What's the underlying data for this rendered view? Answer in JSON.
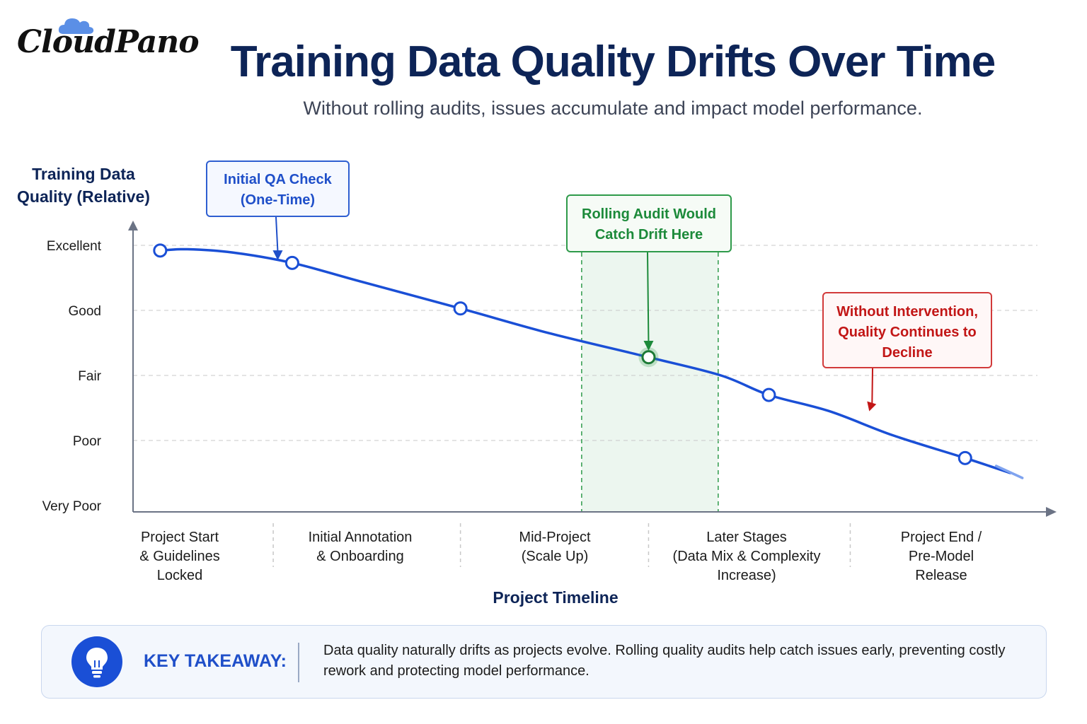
{
  "brand": {
    "logo_text": "CloudPano",
    "cloud_color": "#5b8fe6"
  },
  "header": {
    "title": "Training Data Quality Drifts Over Time",
    "subtitle": "Without rolling audits, issues accumulate and impact model performance."
  },
  "chart_data": {
    "type": "line",
    "ylabel_lines": [
      "Training Data",
      "Quality (Relative)"
    ],
    "xlabel": "Project Timeline",
    "y_categories": [
      "Very Poor",
      "Poor",
      "Fair",
      "Good",
      "Excellent"
    ],
    "ylim": [
      0,
      4
    ],
    "xlim": [
      0,
      100
    ],
    "x_categories": [
      {
        "lines": [
          "Project Start",
          "& Guidelines",
          "Locked"
        ],
        "x": 5
      },
      {
        "lines": [
          "Initial Annotation",
          "& Onboarding"
        ],
        "x": 25
      },
      {
        "lines": [
          "Mid-Project",
          "(Scale Up)"
        ],
        "x": 46
      },
      {
        "lines": [
          "Later Stages",
          "(Data Mix & Complexity",
          "Increase)"
        ],
        "x": 67
      },
      {
        "lines": [
          "Project End /",
          "Pre-Model",
          "Release"
        ],
        "x": 89
      }
    ],
    "x_dividers": [
      15.5,
      36.2,
      57,
      79.3
    ],
    "series": [
      {
        "color": "#1a4fd6",
        "curve": [
          {
            "x": 3,
            "y": 3.92
          },
          {
            "x": 6,
            "y": 3.94
          },
          {
            "x": 11,
            "y": 3.89
          },
          {
            "x": 17.6,
            "y": 3.73
          },
          {
            "x": 25,
            "y": 3.45
          },
          {
            "x": 36.2,
            "y": 3.03
          },
          {
            "x": 46,
            "y": 2.65
          },
          {
            "x": 57,
            "y": 2.28
          },
          {
            "x": 65,
            "y": 2.0
          },
          {
            "x": 70.3,
            "y": 1.7
          },
          {
            "x": 77,
            "y": 1.45
          },
          {
            "x": 84,
            "y": 1.08
          },
          {
            "x": 92,
            "y": 0.73
          },
          {
            "x": 97,
            "y": 0.5
          }
        ],
        "markers": [
          {
            "x": 3,
            "y": 3.92
          },
          {
            "x": 17.6,
            "y": 3.73
          },
          {
            "x": 36.2,
            "y": 3.03
          },
          {
            "x": 57,
            "y": 2.28
          },
          {
            "x": 70.3,
            "y": 1.7
          },
          {
            "x": 92,
            "y": 0.73
          }
        ]
      }
    ],
    "highlight_band": {
      "x_start": 49.6,
      "x_end": 64.7,
      "color": "#2e9a4a"
    },
    "highlight_point": {
      "x": 57,
      "y": 2.28
    },
    "annotations": [
      {
        "id": "initial-qa",
        "lines": [
          "Initial QA Check",
          "(One-Time)"
        ],
        "color": "#1f4fc9",
        "points_to": {
          "x": 16,
          "y": 3.77
        }
      },
      {
        "id": "rolling-audit",
        "lines": [
          "Rolling Audit Would",
          "Catch Drift Here"
        ],
        "color": "#1c8a3a",
        "points_to": {
          "x": 57,
          "y": 2.38
        }
      },
      {
        "id": "no-intervention",
        "lines": [
          "Without Intervention,",
          "Quality Continues to",
          "Decline"
        ],
        "color": "#c21616",
        "points_to": {
          "x": 81.4,
          "y": 1.45
        }
      }
    ],
    "grid": true
  },
  "takeaway": {
    "label": "KEY TAKEAWAY:",
    "text": "Data quality naturally drifts as projects evolve. Rolling quality audits help catch issues early, preventing costly rework and protecting model performance.",
    "icon": "lightbulb-icon",
    "accent": "#1a4fd6"
  }
}
